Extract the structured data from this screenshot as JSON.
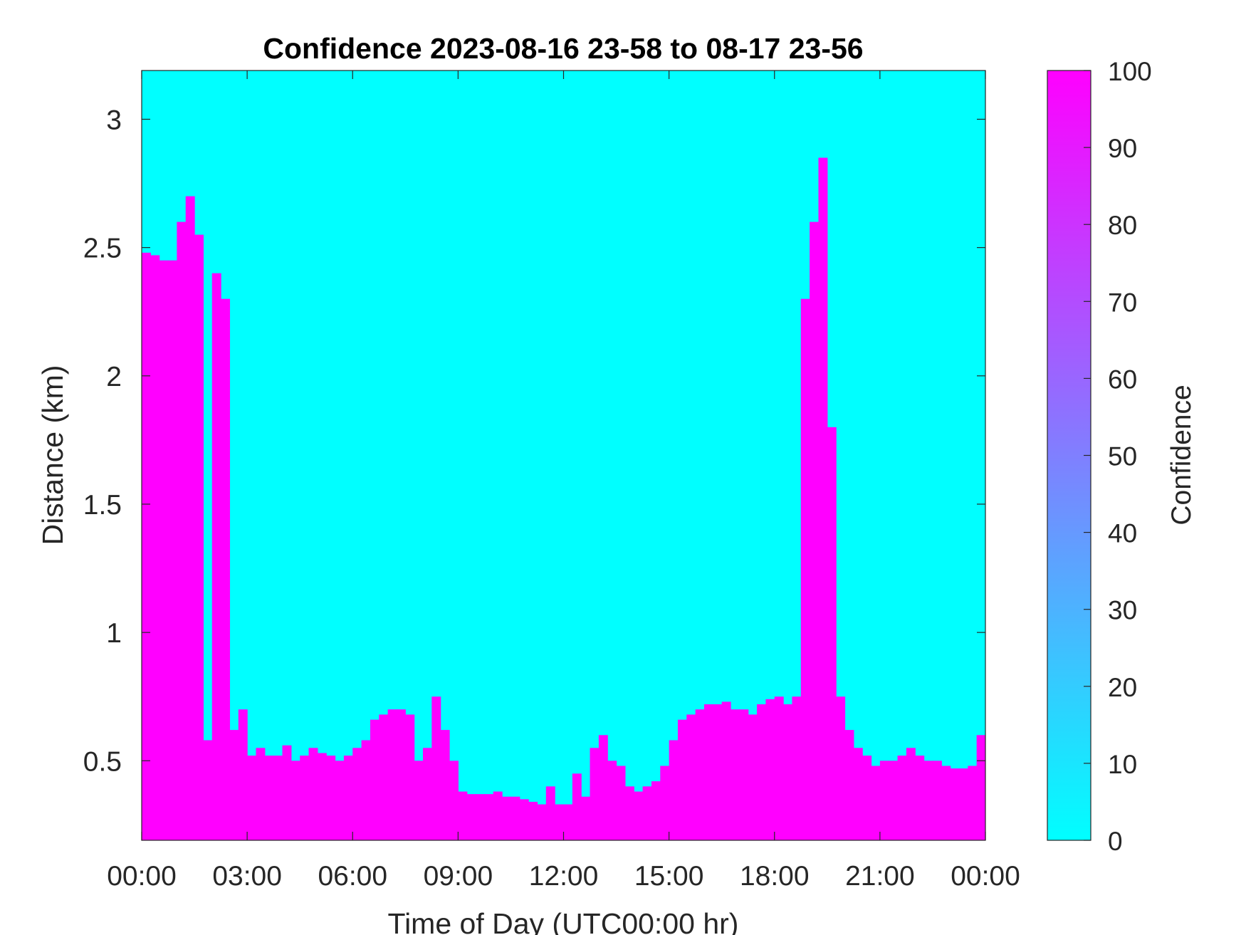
{
  "chart_data": {
    "type": "heatmap",
    "title": "Confidence 2023-08-16 23-58 to 08-17 23-56",
    "xlabel": "Time of Day (UTC00:00 hr)",
    "ylabel": "Distance (km)",
    "colorbar_label": "Confidence",
    "x_ticks": [
      "00:00",
      "03:00",
      "06:00",
      "09:00",
      "12:00",
      "15:00",
      "18:00",
      "21:00",
      "00:00"
    ],
    "x_tick_hours": [
      0,
      3,
      6,
      9,
      12,
      15,
      18,
      21,
      24
    ],
    "xlim_hours": [
      0,
      24
    ],
    "y_ticks": [
      0.5,
      1,
      1.5,
      2,
      2.5,
      3
    ],
    "y_tick_labels": [
      "0.5",
      "1",
      "1.5",
      "2",
      "2.5",
      "3"
    ],
    "ylim_km": [
      0.19,
      3.19
    ],
    "colorbar_ticks": [
      0,
      10,
      20,
      30,
      40,
      50,
      60,
      70,
      80,
      90,
      100
    ],
    "colorbar_tick_labels": [
      "0",
      "10",
      "20",
      "30",
      "40",
      "50",
      "60",
      "70",
      "80",
      "90",
      "100"
    ],
    "clim": [
      0,
      100
    ],
    "colormap": {
      "low_color": "#00ffff",
      "high_color": "#ff00ff"
    },
    "high_confidence_top_km": [
      [
        0.0,
        2.48
      ],
      [
        0.25,
        2.47
      ],
      [
        0.5,
        2.45
      ],
      [
        0.75,
        2.45
      ],
      [
        1.0,
        2.6
      ],
      [
        1.25,
        2.7
      ],
      [
        1.5,
        2.55
      ],
      [
        1.75,
        0.58
      ],
      [
        2.0,
        2.4
      ],
      [
        2.25,
        2.3
      ],
      [
        2.5,
        0.62
      ],
      [
        2.75,
        0.7
      ],
      [
        3.0,
        0.52
      ],
      [
        3.25,
        0.55
      ],
      [
        3.5,
        0.52
      ],
      [
        3.75,
        0.52
      ],
      [
        4.0,
        0.56
      ],
      [
        4.25,
        0.5
      ],
      [
        4.5,
        0.52
      ],
      [
        4.75,
        0.55
      ],
      [
        5.0,
        0.53
      ],
      [
        5.25,
        0.52
      ],
      [
        5.5,
        0.5
      ],
      [
        5.75,
        0.52
      ],
      [
        6.0,
        0.55
      ],
      [
        6.25,
        0.58
      ],
      [
        6.5,
        0.66
      ],
      [
        6.75,
        0.68
      ],
      [
        7.0,
        0.7
      ],
      [
        7.25,
        0.7
      ],
      [
        7.5,
        0.68
      ],
      [
        7.75,
        0.5
      ],
      [
        8.0,
        0.55
      ],
      [
        8.25,
        0.75
      ],
      [
        8.5,
        0.62
      ],
      [
        8.75,
        0.5
      ],
      [
        9.0,
        0.38
      ],
      [
        9.25,
        0.37
      ],
      [
        9.5,
        0.37
      ],
      [
        9.75,
        0.37
      ],
      [
        10.0,
        0.38
      ],
      [
        10.25,
        0.36
      ],
      [
        10.5,
        0.36
      ],
      [
        10.75,
        0.35
      ],
      [
        11.0,
        0.34
      ],
      [
        11.25,
        0.33
      ],
      [
        11.5,
        0.4
      ],
      [
        11.75,
        0.33
      ],
      [
        12.0,
        0.33
      ],
      [
        12.25,
        0.45
      ],
      [
        12.5,
        0.36
      ],
      [
        12.75,
        0.55
      ],
      [
        13.0,
        0.6
      ],
      [
        13.25,
        0.5
      ],
      [
        13.5,
        0.48
      ],
      [
        13.75,
        0.4
      ],
      [
        14.0,
        0.38
      ],
      [
        14.25,
        0.4
      ],
      [
        14.5,
        0.42
      ],
      [
        14.75,
        0.48
      ],
      [
        15.0,
        0.58
      ],
      [
        15.25,
        0.66
      ],
      [
        15.5,
        0.68
      ],
      [
        15.75,
        0.7
      ],
      [
        16.0,
        0.72
      ],
      [
        16.25,
        0.72
      ],
      [
        16.5,
        0.73
      ],
      [
        16.75,
        0.7
      ],
      [
        17.0,
        0.7
      ],
      [
        17.25,
        0.68
      ],
      [
        17.5,
        0.72
      ],
      [
        17.75,
        0.74
      ],
      [
        18.0,
        0.75
      ],
      [
        18.25,
        0.72
      ],
      [
        18.5,
        0.75
      ],
      [
        18.75,
        2.3
      ],
      [
        19.0,
        2.6
      ],
      [
        19.25,
        2.85
      ],
      [
        19.5,
        1.8
      ],
      [
        19.75,
        0.75
      ],
      [
        20.0,
        0.62
      ],
      [
        20.25,
        0.55
      ],
      [
        20.5,
        0.52
      ],
      [
        20.75,
        0.48
      ],
      [
        21.0,
        0.5
      ],
      [
        21.25,
        0.5
      ],
      [
        21.5,
        0.52
      ],
      [
        21.75,
        0.55
      ],
      [
        22.0,
        0.52
      ],
      [
        22.25,
        0.5
      ],
      [
        22.5,
        0.5
      ],
      [
        22.75,
        0.48
      ],
      [
        23.0,
        0.47
      ],
      [
        23.25,
        0.47
      ],
      [
        23.5,
        0.48
      ],
      [
        23.75,
        0.6
      ],
      [
        24.0,
        0.6
      ]
    ],
    "grid": false,
    "colorbar_position": "right"
  }
}
